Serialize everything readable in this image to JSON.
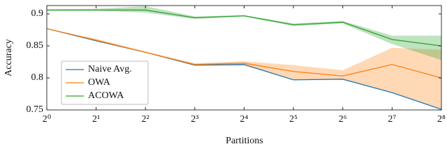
{
  "chart_data": {
    "type": "line",
    "x_label": "Partitions",
    "y_label": "Accuracy",
    "x": [
      1,
      2,
      4,
      8,
      16,
      32,
      64,
      128,
      256
    ],
    "xscale": "log2",
    "xlim": [
      1,
      256
    ],
    "xticks": [
      {
        "value": 1,
        "label": "2⁰"
      },
      {
        "value": 2,
        "label": "2¹"
      },
      {
        "value": 4,
        "label": "2²"
      },
      {
        "value": 8,
        "label": "2³"
      },
      {
        "value": 16,
        "label": "2⁴"
      },
      {
        "value": 32,
        "label": "2⁵"
      },
      {
        "value": 64,
        "label": "2⁶"
      },
      {
        "value": 128,
        "label": "2⁷"
      },
      {
        "value": 256,
        "label": "2⁸"
      }
    ],
    "ylim": [
      0.75,
      0.913
    ],
    "yticks": [
      0.75,
      0.8,
      0.85,
      0.9
    ],
    "grid": false,
    "legend": "lower left",
    "series": [
      {
        "name": "Naive Avg.",
        "color": "#1f77b4",
        "values": [
          0.877,
          0.858,
          0.84,
          0.82,
          0.821,
          0.797,
          0.798,
          0.777,
          0.751
        ]
      },
      {
        "name": "OWA",
        "color": "#ff7f0e",
        "values": [
          0.877,
          0.859,
          0.84,
          0.821,
          0.823,
          0.81,
          0.803,
          0.821,
          0.8
        ],
        "lower": [
          0.877,
          0.857,
          0.839,
          0.819,
          0.819,
          0.797,
          0.797,
          0.777,
          0.752
        ],
        "upper": [
          0.877,
          0.861,
          0.841,
          0.823,
          0.826,
          0.82,
          0.812,
          0.847,
          0.844
        ]
      },
      {
        "name": "ACOWA",
        "color": "#2ca02c",
        "values": [
          0.906,
          0.906,
          0.906,
          0.894,
          0.897,
          0.883,
          0.887,
          0.86,
          0.85
        ],
        "lower": [
          0.905,
          0.905,
          0.902,
          0.892,
          0.896,
          0.881,
          0.885,
          0.853,
          0.828
        ],
        "upper": [
          0.907,
          0.908,
          0.912,
          0.896,
          0.898,
          0.885,
          0.889,
          0.866,
          0.866
        ]
      }
    ]
  }
}
